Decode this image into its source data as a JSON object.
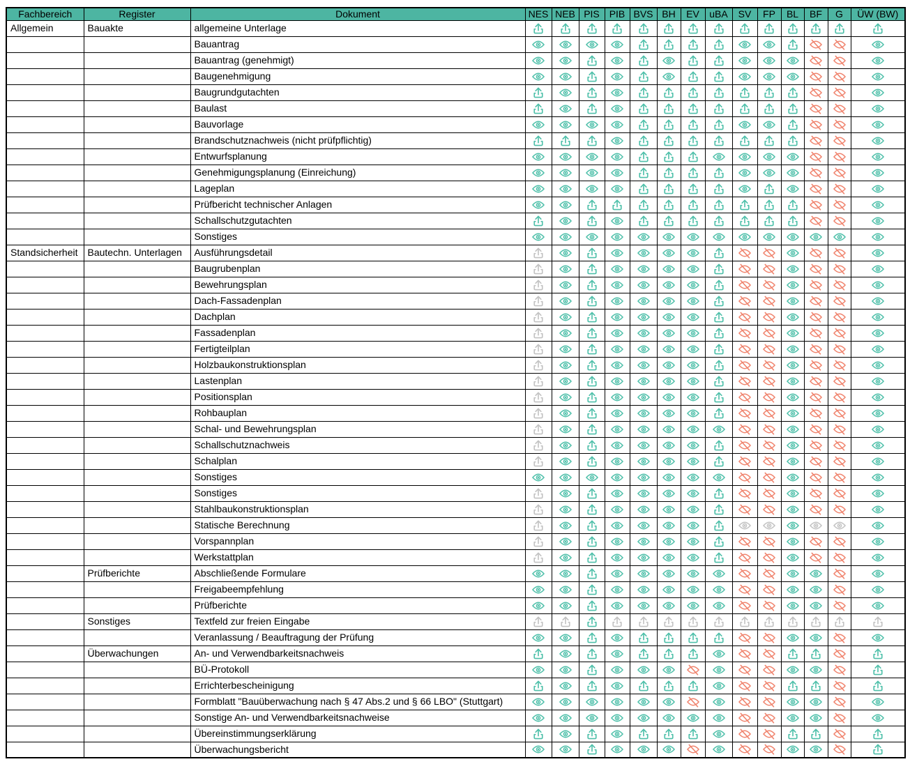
{
  "colors": {
    "teal": "#4fc0aa",
    "coral": "#f0846e",
    "gray": "#c3c3c3",
    "header_bg": "#4db5a2",
    "border": "#000000"
  },
  "icon_legend": {
    "u": {
      "name": "upload-icon",
      "interactable": true
    },
    "U": {
      "name": "upload-icon-disabled",
      "interactable": false
    },
    "e": {
      "name": "eye-icon",
      "interactable": true
    },
    "E": {
      "name": "eye-icon-disabled",
      "interactable": false
    },
    "x": {
      "name": "eye-off-icon",
      "interactable": true
    }
  },
  "table": {
    "headers": [
      "Fachbereich",
      "Register",
      "Dokument",
      "NES",
      "NEB",
      "PIS",
      "PIB",
      "BVS",
      "BH",
      "EV",
      "uBA",
      "SV",
      "FP",
      "BL",
      "BF",
      "G",
      "ÜW (BW)"
    ],
    "rows": [
      {
        "fachbereich": "Allgemein",
        "register": "Bauakte",
        "dokument": "allgemeine Unterlage",
        "icons": "uuuuuuuuuuuuuu"
      },
      {
        "fachbereich": "",
        "register": "",
        "dokument": "Bauantrag",
        "icons": "eeeeuuuueeuxxe"
      },
      {
        "fachbereich": "",
        "register": "",
        "dokument": "Bauantrag (genehmigt)",
        "icons": "eeueueuueeexxe"
      },
      {
        "fachbereich": "",
        "register": "",
        "dokument": "Baugenehmigung",
        "icons": "eeueueuueeexxe"
      },
      {
        "fachbereich": "",
        "register": "",
        "dokument": "Baugrundgutachten",
        "icons": "ueueuuuuuuuxxe"
      },
      {
        "fachbereich": "",
        "register": "",
        "dokument": "Baulast",
        "icons": "ueueuuuuuuuxxe"
      },
      {
        "fachbereich": "",
        "register": "",
        "dokument": "Bauvorlage",
        "icons": "eeeeuuuueeuxxe"
      },
      {
        "fachbereich": "",
        "register": "",
        "dokument": "Brandschutznachweis (nicht prüfpflichtig)",
        "icons": "uuueuuuuuuuxxe"
      },
      {
        "fachbereich": "",
        "register": "",
        "dokument": "Entwurfsplanung",
        "icons": "eeeeuuueeeexxe"
      },
      {
        "fachbereich": "",
        "register": "",
        "dokument": "Genehmigungsplanung (Einreichung)",
        "icons": "eeeeuuuueeexxe"
      },
      {
        "fachbereich": "",
        "register": "",
        "dokument": "Lageplan",
        "icons": "eeeeuuuueuexxe"
      },
      {
        "fachbereich": "",
        "register": "",
        "dokument": "Prüfbericht technischer Anlagen",
        "icons": "eeuuuuuuuuuxxe"
      },
      {
        "fachbereich": "",
        "register": "",
        "dokument": "Schallschutzgutachten",
        "icons": "ueueuuuuuuuxxe"
      },
      {
        "fachbereich": "",
        "register": "",
        "dokument": "Sonstiges",
        "icons": "eeeeeeeeeeeeee"
      },
      {
        "fachbereich": "Standsicherheit",
        "register": "Bautechn. Unterlagen",
        "dokument": "Ausführungsdetail",
        "icons": "Ueueeeeuxxexxe"
      },
      {
        "fachbereich": "",
        "register": "",
        "dokument": "Baugrubenplan",
        "icons": "Ueueeeeuxxexxe"
      },
      {
        "fachbereich": "",
        "register": "",
        "dokument": "Bewehrungsplan",
        "icons": "Ueueeeeuxxexxe"
      },
      {
        "fachbereich": "",
        "register": "",
        "dokument": "Dach-Fassadenplan",
        "icons": "Ueueeeeuxxexxe"
      },
      {
        "fachbereich": "",
        "register": "",
        "dokument": "Dachplan",
        "icons": "Ueueeeeuxxexxe"
      },
      {
        "fachbereich": "",
        "register": "",
        "dokument": "Fassadenplan",
        "icons": "Ueueeeeuxxexxe"
      },
      {
        "fachbereich": "",
        "register": "",
        "dokument": "Fertigteilplan",
        "icons": "Ueueeeeuxxexxe"
      },
      {
        "fachbereich": "",
        "register": "",
        "dokument": "Holzbaukonstruktionsplan",
        "icons": "Ueueeeeuxxexxe"
      },
      {
        "fachbereich": "",
        "register": "",
        "dokument": "Lastenplan",
        "icons": "Ueueeeeuxxexxe"
      },
      {
        "fachbereich": "",
        "register": "",
        "dokument": "Positionsplan",
        "icons": "Ueueeeeuxxexxe"
      },
      {
        "fachbereich": "",
        "register": "",
        "dokument": "Rohbauplan",
        "icons": "Ueueeeeuxxexxe"
      },
      {
        "fachbereich": "",
        "register": "",
        "dokument": "Schal- und Bewehrungsplan",
        "icons": "Ueueeeeexxexxe"
      },
      {
        "fachbereich": "",
        "register": "",
        "dokument": "Schallschutznachweis",
        "icons": "Ueueeeeuxxexxe"
      },
      {
        "fachbereich": "",
        "register": "",
        "dokument": "Schalplan",
        "icons": "Ueueeeeuxxexxe"
      },
      {
        "fachbereich": "",
        "register": "",
        "dokument": "Sonstiges",
        "icons": "eeeeeeeexxexxe"
      },
      {
        "fachbereich": "",
        "register": "",
        "dokument": "Sonstiges",
        "icons": "Ueueeeeuxxexxe"
      },
      {
        "fachbereich": "",
        "register": "",
        "dokument": "Stahlbaukonstruktionsplan",
        "icons": "Ueueeeeuxxexxe"
      },
      {
        "fachbereich": "",
        "register": "",
        "dokument": "Statische Berechnung",
        "icons": "UeueeeeuEEeEEe"
      },
      {
        "fachbereich": "",
        "register": "",
        "dokument": "Vorspannplan",
        "icons": "Ueueeeeuxxexxe"
      },
      {
        "fachbereich": "",
        "register": "",
        "dokument": "Werkstattplan",
        "icons": "Ueueeeeuxxexxe"
      },
      {
        "fachbereich": "",
        "register": "Prüfberichte",
        "dokument": "Abschließende Formulare",
        "icons": "eeueeeeexxeexe"
      },
      {
        "fachbereich": "",
        "register": "",
        "dokument": "Freigabeempfehlung",
        "icons": "eeueeeeexxeexe"
      },
      {
        "fachbereich": "",
        "register": "",
        "dokument": "Prüfberichte",
        "icons": "eeueeeeexxeexe"
      },
      {
        "fachbereich": "",
        "register": "Sonstiges",
        "dokument": "Textfeld zur freien Eingabe",
        "icons": "UUuUUUUUUUUUUU"
      },
      {
        "fachbereich": "",
        "register": "",
        "dokument": "Veranlassung / Beauftragung der Prüfung",
        "icons": "eeueuuuuxxeexe"
      },
      {
        "fachbereich": "",
        "register": "Überwachungen",
        "dokument": "An- und Verwendbarkeitsnachweis",
        "icons": "ueueuuuexxuuxu"
      },
      {
        "fachbereich": "",
        "register": "",
        "dokument": "BÜ-Protokoll",
        "icons": "eeueeexexxeexu"
      },
      {
        "fachbereich": "",
        "register": "",
        "dokument": "Errichterbescheinigung",
        "icons": "ueueuuuexxuuxu"
      },
      {
        "fachbereich": "",
        "register": "",
        "dokument": "Formblatt \"Bauüberwachung nach § 47 Abs.2 und § 66 LBO\" (Stuttgart)",
        "icons": "eeeeeexexxeexe"
      },
      {
        "fachbereich": "",
        "register": "",
        "dokument": "Sonstige An- und Verwendbarkeitsnachweise",
        "icons": "eeeeeeeexxeexe"
      },
      {
        "fachbereich": "",
        "register": "",
        "dokument": "Übereinstimmungserklärung",
        "icons": "ueueuuuexxuuxu"
      },
      {
        "fachbereich": "",
        "register": "",
        "dokument": "Überwachungsbericht",
        "icons": "eeueeexexxeexu"
      }
    ]
  }
}
